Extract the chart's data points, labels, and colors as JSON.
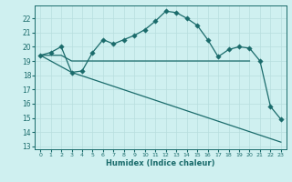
{
  "line1_x": [
    0,
    1,
    2,
    3,
    4,
    5,
    6,
    7,
    8,
    9,
    10,
    11,
    12,
    13,
    14,
    15,
    16,
    17,
    18,
    19,
    20,
    21,
    22,
    23
  ],
  "line1_y": [
    19.4,
    19.6,
    20.0,
    18.2,
    18.3,
    19.6,
    20.5,
    20.2,
    20.5,
    20.8,
    21.2,
    21.8,
    22.5,
    22.4,
    22.0,
    21.5,
    20.5,
    19.3,
    19.8,
    20.0,
    19.9,
    19.0,
    15.8,
    14.9
  ],
  "line1_markers": [
    0,
    1,
    2,
    3,
    4,
    5,
    6,
    7,
    8,
    9,
    10,
    11,
    12,
    13,
    14,
    15,
    16,
    17,
    18,
    19,
    20,
    21,
    22,
    23
  ],
  "line2_x": [
    0,
    1,
    2,
    3,
    4,
    5,
    6,
    7,
    8,
    9,
    10,
    11,
    12,
    13,
    14,
    15,
    16,
    17,
    18,
    19,
    20
  ],
  "line2_y": [
    19.4,
    19.4,
    19.4,
    19.0,
    19.0,
    19.0,
    19.0,
    19.0,
    19.0,
    19.0,
    19.0,
    19.0,
    19.0,
    19.0,
    19.0,
    19.0,
    19.0,
    19.0,
    19.0,
    19.0,
    19.0
  ],
  "line3_x": [
    0,
    3,
    23
  ],
  "line3_y": [
    19.4,
    18.2,
    13.3
  ],
  "line_color": "#1a6b6b",
  "bg_color": "#cff0f0",
  "grid_color": "#b8dede",
  "xlabel": "Humidex (Indice chaleur)",
  "ylabel_ticks": [
    13,
    14,
    15,
    16,
    17,
    18,
    19,
    20,
    21,
    22
  ],
  "xlim": [
    -0.5,
    23.5
  ],
  "ylim": [
    12.8,
    22.9
  ],
  "xticks": [
    0,
    1,
    2,
    3,
    4,
    5,
    6,
    7,
    8,
    9,
    10,
    11,
    12,
    13,
    14,
    15,
    16,
    17,
    18,
    19,
    20,
    21,
    22,
    23
  ]
}
